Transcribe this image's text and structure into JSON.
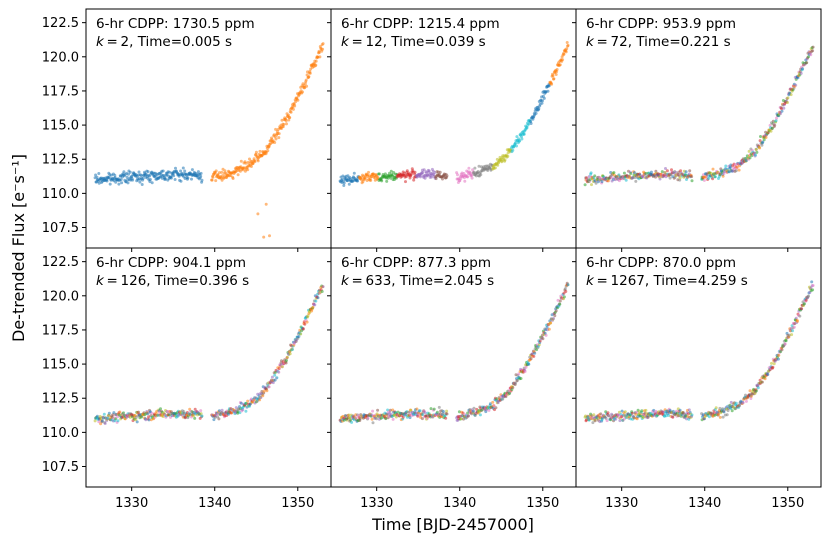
{
  "chart_data": {
    "type": "scatter",
    "xlabel": "Time [BJD-2457000]",
    "ylabel": "De-trended Flux [e⁻s⁻¹]",
    "xlim": [
      1324.5,
      1354.0
    ],
    "ylim": [
      106.0,
      123.5
    ],
    "x_ticks": [
      1330,
      1340,
      1350
    ],
    "x_tick_labels": [
      "1330",
      "1340",
      "1350"
    ],
    "y_ticks": [
      107.5,
      110.0,
      112.5,
      115.0,
      117.5,
      120.0,
      122.5
    ],
    "y_tick_labels": [
      "107.5",
      "110.0",
      "112.5",
      "115.0",
      "117.5",
      "120.0",
      "122.5"
    ],
    "series_colors": [
      "#1f77b4",
      "#ff7f0e",
      "#2ca02c",
      "#d62728",
      "#9467bd",
      "#8c564b",
      "#e377c2",
      "#7f7f7f",
      "#bcbd22",
      "#17becf"
    ],
    "data_gap": [
      1338.5,
      1339.6
    ],
    "baseline_flux": 111.2,
    "trend_points": [
      {
        "x": 1325.5,
        "y": 111.0
      },
      {
        "x": 1330.0,
        "y": 111.2
      },
      {
        "x": 1335.0,
        "y": 111.4
      },
      {
        "x": 1338.5,
        "y": 111.3
      },
      {
        "x": 1340.0,
        "y": 111.2
      },
      {
        "x": 1342.0,
        "y": 111.5
      },
      {
        "x": 1344.0,
        "y": 112.0
      },
      {
        "x": 1346.0,
        "y": 113.0
      },
      {
        "x": 1348.0,
        "y": 114.8
      },
      {
        "x": 1350.0,
        "y": 117.0
      },
      {
        "x": 1352.0,
        "y": 119.5
      },
      {
        "x": 1353.2,
        "y": 121.0
      }
    ],
    "panels": [
      {
        "cdpp_label": "6-hr CDPP: 1730.5 ppm",
        "k": 2,
        "time_label": ", Time=0.005 s"
      },
      {
        "cdpp_label": "6-hr CDPP: 1215.4 ppm",
        "k": 12,
        "time_label": ", Time=0.039 s"
      },
      {
        "cdpp_label": "6-hr CDPP: 953.9 ppm",
        "k": 72,
        "time_label": ", Time=0.221 s"
      },
      {
        "cdpp_label": "6-hr CDPP: 904.1 ppm",
        "k": 126,
        "time_label": ", Time=0.396 s"
      },
      {
        "cdpp_label": "6-hr CDPP: 877.3 ppm",
        "k": 633,
        "time_label": ", Time=2.045 s"
      },
      {
        "cdpp_label": "6-hr CDPP: 870.0 ppm",
        "k": 1267,
        "time_label": ", Time=4.259 s"
      }
    ]
  }
}
